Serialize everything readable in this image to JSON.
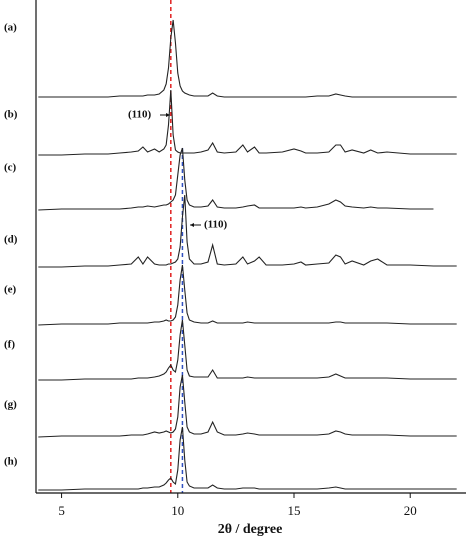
{
  "chart_data": {
    "type": "line",
    "xlabel": "2θ / degree",
    "xlim": [
      3.9,
      22.4
    ],
    "xticks": [
      5,
      10,
      15,
      20
    ],
    "x": [
      4,
      5,
      6,
      7,
      7.5,
      8,
      8.3,
      8.5,
      8.7,
      9,
      9.2,
      9.4,
      9.5,
      9.6,
      9.7,
      9.8,
      9.9,
      10.0,
      10.1,
      10.2,
      10.3,
      10.4,
      10.5,
      10.7,
      11,
      11.3,
      11.5,
      11.7,
      12,
      12.5,
      12.8,
      13,
      13.3,
      13.5,
      13.8,
      14.5,
      15,
      15.3,
      15.5,
      16,
      16.5,
      16.8,
      17,
      17.2,
      17.5,
      18,
      18.3,
      18.6,
      19,
      20,
      21,
      22
    ],
    "series": [
      {
        "name": "(a)",
        "color": "#222222",
        "values": [
          1,
          1,
          1,
          1,
          2,
          2,
          2,
          2,
          3,
          3,
          4,
          8,
          14,
          30,
          60,
          78,
          55,
          25,
          12,
          7,
          5,
          4,
          3,
          2,
          2,
          2,
          5,
          2,
          1,
          1,
          1,
          1,
          1,
          1,
          1,
          1,
          1,
          1,
          1,
          2,
          2,
          4,
          3,
          2,
          1,
          1,
          1,
          1,
          1,
          1,
          1,
          1
        ]
      },
      {
        "name": "(b)",
        "color": "#222222",
        "values": [
          0,
          0,
          1,
          1,
          2,
          3,
          4,
          8,
          3,
          6,
          3,
          6,
          10,
          30,
          65,
          20,
          5,
          3,
          2,
          2,
          2,
          2,
          2,
          2,
          3,
          5,
          12,
          3,
          2,
          3,
          10,
          3,
          8,
          2,
          2,
          3,
          6,
          4,
          2,
          2,
          3,
          10,
          10,
          3,
          5,
          2,
          5,
          2,
          3,
          1,
          1,
          1
        ]
      },
      {
        "name": "(c)",
        "color": "#222222",
        "values": [
          0,
          1,
          1,
          1,
          1,
          2,
          3,
          3,
          4,
          3,
          4,
          5,
          5,
          6,
          8,
          10,
          15,
          35,
          55,
          62,
          30,
          10,
          5,
          3,
          3,
          4,
          10,
          3,
          2,
          2,
          3,
          4,
          5,
          2,
          2,
          2,
          2,
          3,
          2,
          3,
          6,
          10,
          8,
          4,
          3,
          2,
          3,
          2,
          2,
          1,
          1,
          null
        ]
      },
      {
        "name": "(d)",
        "color": "#222222",
        "values": [
          0,
          0,
          1,
          1,
          2,
          3,
          10,
          3,
          10,
          3,
          2,
          2,
          2,
          3,
          3,
          4,
          5,
          8,
          20,
          50,
          72,
          25,
          8,
          3,
          3,
          5,
          22,
          3,
          2,
          3,
          10,
          3,
          6,
          10,
          2,
          2,
          3,
          5,
          2,
          3,
          4,
          12,
          10,
          3,
          6,
          2,
          6,
          8,
          2,
          2,
          1,
          1
        ]
      },
      {
        "name": "(e)",
        "color": "#222222",
        "values": [
          0,
          1,
          1,
          1,
          2,
          2,
          2,
          2,
          2,
          3,
          3,
          4,
          5,
          4,
          4,
          5,
          8,
          20,
          45,
          60,
          35,
          12,
          5,
          3,
          2,
          2,
          4,
          2,
          2,
          2,
          2,
          3,
          2,
          2,
          2,
          2,
          2,
          2,
          2,
          2,
          2,
          3,
          3,
          2,
          2,
          2,
          2,
          2,
          2,
          1,
          1,
          1
        ]
      },
      {
        "name": "(f)",
        "color": "#222222",
        "values": [
          0,
          0,
          1,
          1,
          1,
          1,
          2,
          2,
          2,
          3,
          4,
          6,
          8,
          12,
          15,
          10,
          8,
          20,
          45,
          60,
          35,
          10,
          4,
          3,
          3,
          3,
          10,
          2,
          2,
          2,
          2,
          3,
          2,
          2,
          2,
          2,
          2,
          2,
          2,
          2,
          3,
          6,
          4,
          2,
          2,
          2,
          2,
          2,
          2,
          1,
          1,
          1
        ]
      },
      {
        "name": "(g)",
        "color": "#222222",
        "values": [
          0,
          1,
          1,
          1,
          1,
          2,
          2,
          2,
          3,
          5,
          4,
          5,
          6,
          5,
          4,
          5,
          8,
          20,
          50,
          62,
          35,
          10,
          5,
          3,
          3,
          5,
          15,
          5,
          2,
          2,
          3,
          4,
          3,
          2,
          2,
          2,
          2,
          2,
          2,
          2,
          3,
          6,
          5,
          3,
          2,
          2,
          2,
          2,
          2,
          1,
          1,
          1
        ]
      },
      {
        "name": "(h)",
        "color": "#222222",
        "values": [
          0,
          0,
          1,
          1,
          1,
          1,
          1,
          2,
          2,
          3,
          3,
          5,
          7,
          10,
          12,
          8,
          6,
          20,
          50,
          63,
          30,
          8,
          4,
          2,
          2,
          2,
          5,
          2,
          1,
          1,
          2,
          2,
          2,
          1,
          1,
          1,
          1,
          1,
          1,
          1,
          2,
          3,
          2,
          1,
          1,
          1,
          1,
          1,
          1,
          1,
          1,
          1
        ]
      }
    ],
    "reference_lines": [
      {
        "x": 9.7,
        "color": "#e02020"
      },
      {
        "x": 10.2,
        "color": "#3050c0"
      }
    ],
    "annotations": [
      "(110)",
      "(110)"
    ]
  }
}
